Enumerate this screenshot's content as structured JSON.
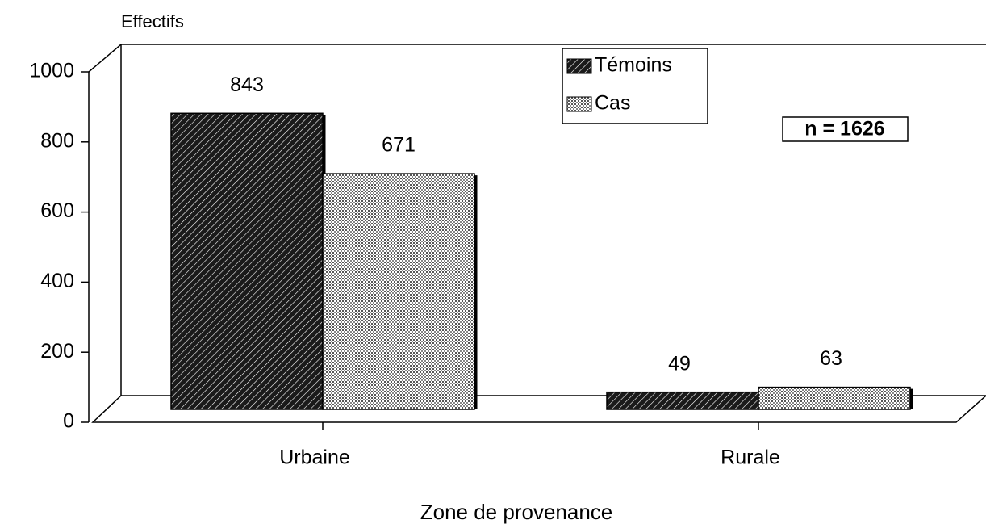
{
  "chart_data": {
    "type": "bar",
    "y_label": "Effectifs",
    "x_label": "Zone de provenance",
    "annotation": "n = 1626",
    "categories": [
      "Urbaine",
      "Rurale"
    ],
    "series": [
      {
        "name": "Témoins",
        "color": "#2a2a2a",
        "values": [
          843,
          49
        ]
      },
      {
        "name": "Cas",
        "color": "#b0b0b0",
        "values": [
          671,
          63
        ]
      }
    ],
    "ylim": [
      0,
      1000
    ],
    "yticks": [
      0,
      200,
      400,
      600,
      800,
      1000
    ],
    "legend": "top"
  }
}
